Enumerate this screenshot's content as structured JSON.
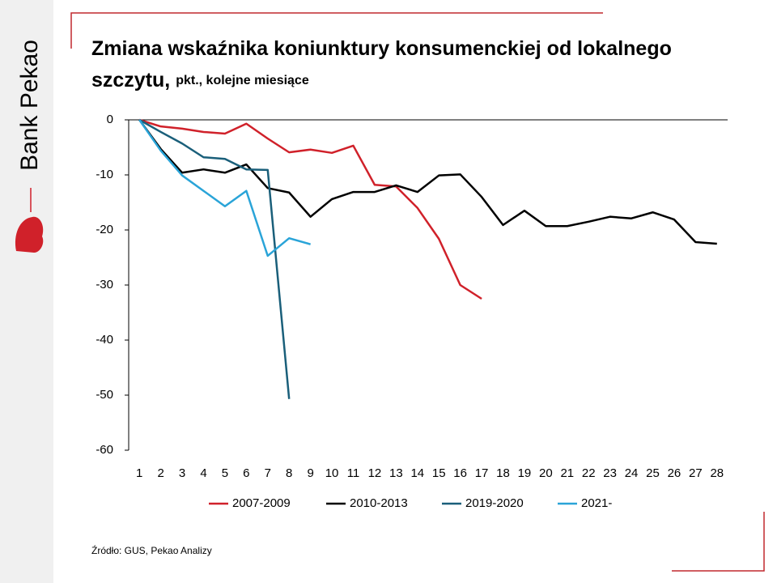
{
  "logo": "Bank Pekao",
  "chart_data": {
    "type": "line",
    "title": "Zmiana wskaźnika koniunktury konsumenckiej od lokalnego szczytu,",
    "subtitle": "pkt., kolejne miesiące",
    "source": "Źródło: GUS, Pekao Analizy",
    "x": [
      1,
      2,
      3,
      4,
      5,
      6,
      7,
      8,
      9,
      10,
      11,
      12,
      13,
      14,
      15,
      16,
      17,
      18,
      19,
      20,
      21,
      22,
      23,
      24,
      25,
      26,
      27,
      28
    ],
    "xlim": [
      0.5,
      28.5
    ],
    "xticks": [
      1,
      2,
      3,
      4,
      5,
      6,
      7,
      8,
      9,
      10,
      11,
      12,
      13,
      14,
      15,
      16,
      17,
      18,
      19,
      20,
      21,
      22,
      23,
      24,
      25,
      26,
      27,
      28
    ],
    "ylim": [
      -60,
      0
    ],
    "yticks": [
      0,
      -10,
      -20,
      -30,
      -40,
      -50,
      -60
    ],
    "legend": "bottom",
    "series": [
      {
        "name": "2007-2009",
        "color": "#d0212a",
        "values": [
          0,
          -1.2,
          -1.6,
          -2.2,
          -2.5,
          -0.7,
          -3.4,
          -5.9,
          -5.4,
          -6.0,
          -4.7,
          -11.8,
          -12.1,
          -16.0,
          -21.6,
          -30.0,
          -32.5,
          null,
          null,
          null,
          null,
          null,
          null,
          null,
          null,
          null,
          null,
          null
        ]
      },
      {
        "name": "2010-2013",
        "color": "#000000",
        "values": [
          0,
          -5.3,
          -9.6,
          -9.0,
          -9.6,
          -8.1,
          -12.4,
          -13.2,
          -17.6,
          -14.4,
          -13.1,
          -13.1,
          -11.9,
          -13.1,
          -10.1,
          -9.9,
          -14.0,
          -19.1,
          -16.5,
          -19.3,
          -19.3,
          -18.5,
          -17.6,
          -17.9,
          -16.8,
          -18.1,
          -22.2,
          -22.5
        ]
      },
      {
        "name": "2019-2020",
        "color": "#1a5f7a",
        "values": [
          0,
          -2.2,
          -4.3,
          -6.8,
          -7.1,
          -9.0,
          -9.1,
          -50.7,
          null,
          null,
          null,
          null,
          null,
          null,
          null,
          null,
          null,
          null,
          null,
          null,
          null,
          null,
          null,
          null,
          null,
          null,
          null,
          null
        ]
      },
      {
        "name": "2021-",
        "color": "#2aa4d8",
        "values": [
          0,
          -5.6,
          -10.1,
          -12.9,
          -15.7,
          -12.9,
          -24.7,
          -21.5,
          -22.6,
          null,
          null,
          null,
          null,
          null,
          null,
          null,
          null,
          null,
          null,
          null,
          null,
          null,
          null,
          null,
          null,
          null,
          null,
          null
        ]
      }
    ]
  }
}
